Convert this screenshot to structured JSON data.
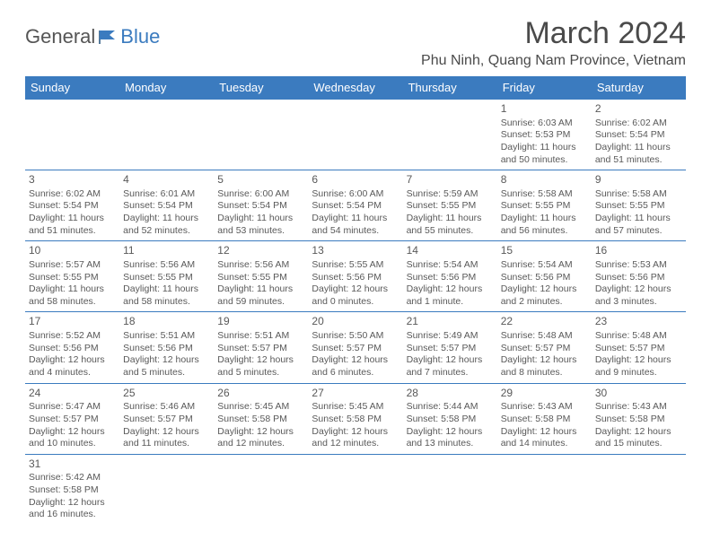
{
  "logo": {
    "text1": "General",
    "text2": "Blue"
  },
  "title": "March 2024",
  "location": "Phu Ninh, Quang Nam Province, Vietnam",
  "colors": {
    "header_bg": "#3b7bbf",
    "header_text": "#ffffff",
    "border": "#3b7bbf",
    "body_text": "#595959",
    "title_text": "#4a4a4a"
  },
  "dayHeaders": [
    "Sunday",
    "Monday",
    "Tuesday",
    "Wednesday",
    "Thursday",
    "Friday",
    "Saturday"
  ],
  "weeks": [
    [
      null,
      null,
      null,
      null,
      null,
      {
        "n": "1",
        "sr": "6:03 AM",
        "ss": "5:53 PM",
        "dl": "11 hours and 50 minutes."
      },
      {
        "n": "2",
        "sr": "6:02 AM",
        "ss": "5:54 PM",
        "dl": "11 hours and 51 minutes."
      }
    ],
    [
      {
        "n": "3",
        "sr": "6:02 AM",
        "ss": "5:54 PM",
        "dl": "11 hours and 51 minutes."
      },
      {
        "n": "4",
        "sr": "6:01 AM",
        "ss": "5:54 PM",
        "dl": "11 hours and 52 minutes."
      },
      {
        "n": "5",
        "sr": "6:00 AM",
        "ss": "5:54 PM",
        "dl": "11 hours and 53 minutes."
      },
      {
        "n": "6",
        "sr": "6:00 AM",
        "ss": "5:54 PM",
        "dl": "11 hours and 54 minutes."
      },
      {
        "n": "7",
        "sr": "5:59 AM",
        "ss": "5:55 PM",
        "dl": "11 hours and 55 minutes."
      },
      {
        "n": "8",
        "sr": "5:58 AM",
        "ss": "5:55 PM",
        "dl": "11 hours and 56 minutes."
      },
      {
        "n": "9",
        "sr": "5:58 AM",
        "ss": "5:55 PM",
        "dl": "11 hours and 57 minutes."
      }
    ],
    [
      {
        "n": "10",
        "sr": "5:57 AM",
        "ss": "5:55 PM",
        "dl": "11 hours and 58 minutes."
      },
      {
        "n": "11",
        "sr": "5:56 AM",
        "ss": "5:55 PM",
        "dl": "11 hours and 58 minutes."
      },
      {
        "n": "12",
        "sr": "5:56 AM",
        "ss": "5:55 PM",
        "dl": "11 hours and 59 minutes."
      },
      {
        "n": "13",
        "sr": "5:55 AM",
        "ss": "5:56 PM",
        "dl": "12 hours and 0 minutes."
      },
      {
        "n": "14",
        "sr": "5:54 AM",
        "ss": "5:56 PM",
        "dl": "12 hours and 1 minute."
      },
      {
        "n": "15",
        "sr": "5:54 AM",
        "ss": "5:56 PM",
        "dl": "12 hours and 2 minutes."
      },
      {
        "n": "16",
        "sr": "5:53 AM",
        "ss": "5:56 PM",
        "dl": "12 hours and 3 minutes."
      }
    ],
    [
      {
        "n": "17",
        "sr": "5:52 AM",
        "ss": "5:56 PM",
        "dl": "12 hours and 4 minutes."
      },
      {
        "n": "18",
        "sr": "5:51 AM",
        "ss": "5:56 PM",
        "dl": "12 hours and 5 minutes."
      },
      {
        "n": "19",
        "sr": "5:51 AM",
        "ss": "5:57 PM",
        "dl": "12 hours and 5 minutes."
      },
      {
        "n": "20",
        "sr": "5:50 AM",
        "ss": "5:57 PM",
        "dl": "12 hours and 6 minutes."
      },
      {
        "n": "21",
        "sr": "5:49 AM",
        "ss": "5:57 PM",
        "dl": "12 hours and 7 minutes."
      },
      {
        "n": "22",
        "sr": "5:48 AM",
        "ss": "5:57 PM",
        "dl": "12 hours and 8 minutes."
      },
      {
        "n": "23",
        "sr": "5:48 AM",
        "ss": "5:57 PM",
        "dl": "12 hours and 9 minutes."
      }
    ],
    [
      {
        "n": "24",
        "sr": "5:47 AM",
        "ss": "5:57 PM",
        "dl": "12 hours and 10 minutes."
      },
      {
        "n": "25",
        "sr": "5:46 AM",
        "ss": "5:57 PM",
        "dl": "12 hours and 11 minutes."
      },
      {
        "n": "26",
        "sr": "5:45 AM",
        "ss": "5:58 PM",
        "dl": "12 hours and 12 minutes."
      },
      {
        "n": "27",
        "sr": "5:45 AM",
        "ss": "5:58 PM",
        "dl": "12 hours and 12 minutes."
      },
      {
        "n": "28",
        "sr": "5:44 AM",
        "ss": "5:58 PM",
        "dl": "12 hours and 13 minutes."
      },
      {
        "n": "29",
        "sr": "5:43 AM",
        "ss": "5:58 PM",
        "dl": "12 hours and 14 minutes."
      },
      {
        "n": "30",
        "sr": "5:43 AM",
        "ss": "5:58 PM",
        "dl": "12 hours and 15 minutes."
      }
    ],
    [
      {
        "n": "31",
        "sr": "5:42 AM",
        "ss": "5:58 PM",
        "dl": "12 hours and 16 minutes."
      },
      null,
      null,
      null,
      null,
      null,
      null
    ]
  ],
  "labels": {
    "sunrise": "Sunrise: ",
    "sunset": "Sunset: ",
    "daylight": "Daylight: "
  }
}
